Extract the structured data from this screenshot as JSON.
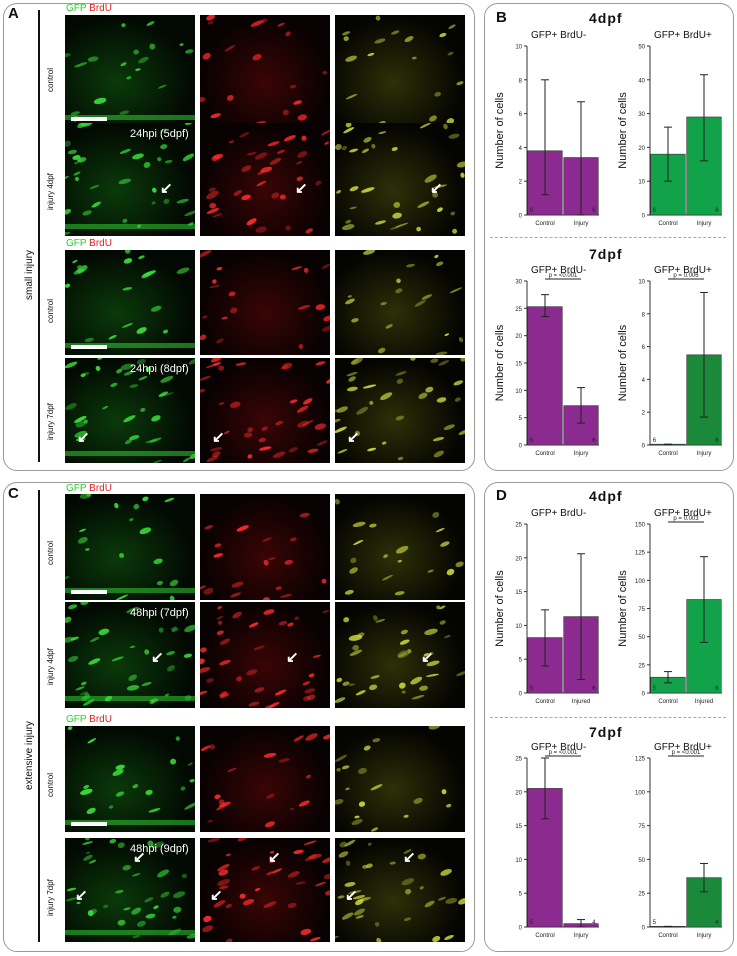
{
  "labels": {
    "a": "A",
    "b": "B",
    "c": "C",
    "d": "D"
  },
  "channels": {
    "gfp": "GFP",
    "brdu": "BrdU"
  },
  "groups": {
    "small": "small injury",
    "extensive": "extensive injury"
  },
  "rows": {
    "control": "control",
    "injury4": "injury 4dpf",
    "injury7": "injury 7dpf"
  },
  "captions": {
    "a2": "24hpi (5dpf)",
    "a4": "24hpi (8dpf)",
    "c2": "48hpi (7dpf)",
    "c4": "48hpi (9dpf)"
  },
  "headings": {
    "b4": "4dpf",
    "b7": "7dpf",
    "d4": "4dpf",
    "d7": "7dpf"
  },
  "colors": {
    "purple": "#8b2a8f",
    "green": "#12a24a",
    "greenDark": "#1a8a3a"
  },
  "chart_data": [
    {
      "id": "b4l",
      "type": "bar",
      "title": "GFP+ BrdU-",
      "ylabel": "Number of cells",
      "ylim": [
        0,
        10
      ],
      "yticks": [
        0,
        2,
        4,
        6,
        8,
        10
      ],
      "categories": [
        "Control",
        "Injury"
      ],
      "values": [
        3.8,
        3.4
      ],
      "errors": [
        [
          1.2,
          8.0
        ],
        [
          0,
          6.7
        ]
      ],
      "n": [
        "6",
        "6"
      ],
      "color": "purple",
      "pvalue": ""
    },
    {
      "id": "b4r",
      "type": "bar",
      "title": "GFP+ BrdU+",
      "ylabel": "Number of cells",
      "ylim": [
        0,
        50
      ],
      "yticks": [
        0,
        10,
        20,
        30,
        40,
        50
      ],
      "categories": [
        "Control",
        "Injury"
      ],
      "values": [
        18,
        29
      ],
      "errors": [
        [
          10,
          26
        ],
        [
          16,
          41.5
        ]
      ],
      "n": [
        "6",
        "6"
      ],
      "color": "green",
      "pvalue": ""
    },
    {
      "id": "b7l",
      "type": "bar",
      "title": "GFP+ BrdU-",
      "ylabel": "Number of cells",
      "ylim": [
        0,
        30
      ],
      "yticks": [
        0,
        5,
        10,
        15,
        20,
        25,
        30
      ],
      "categories": [
        "Control",
        "Injury"
      ],
      "values": [
        25.3,
        7.2
      ],
      "errors": [
        [
          23.5,
          27.5
        ],
        [
          4,
          10.5
        ]
      ],
      "n": [
        "6",
        "6"
      ],
      "color": "purple",
      "pvalue": "p = <0.001"
    },
    {
      "id": "b7r",
      "type": "bar",
      "title": "GFP+ BrdU+",
      "ylabel": "Number of cells",
      "ylim": [
        0,
        10
      ],
      "yticks": [
        0,
        2,
        4,
        6,
        8,
        10
      ],
      "categories": [
        "Control",
        "Injury"
      ],
      "values": [
        0.05,
        5.5
      ],
      "errors": [
        [
          0,
          0.05
        ],
        [
          1.7,
          9.3
        ]
      ],
      "n": [
        "6",
        "6"
      ],
      "color": "greenDark",
      "pvalue": "p = 0.006"
    },
    {
      "id": "d4l",
      "type": "bar",
      "title": "GFP+ BrdU-",
      "ylabel": "Number of cells",
      "ylim": [
        0,
        25
      ],
      "yticks": [
        0,
        5,
        10,
        15,
        20,
        25
      ],
      "categories": [
        "Control",
        "Injured"
      ],
      "values": [
        8.2,
        11.3
      ],
      "errors": [
        [
          4,
          12.3
        ],
        [
          2,
          20.6
        ]
      ],
      "n": [
        "5",
        "6"
      ],
      "color": "purple",
      "pvalue": ""
    },
    {
      "id": "d4r",
      "type": "bar",
      "title": "GFP+ BrdU+",
      "ylabel": "Number of cells",
      "ylim": [
        0,
        150
      ],
      "yticks": [
        0,
        25,
        50,
        75,
        100,
        125,
        150
      ],
      "categories": [
        "Control",
        "Injured"
      ],
      "values": [
        14,
        83
      ],
      "errors": [
        [
          9,
          19
        ],
        [
          45,
          121
        ]
      ],
      "n": [
        "5",
        "6"
      ],
      "color": "green",
      "pvalue": "p = 0.003"
    },
    {
      "id": "d7l",
      "type": "bar",
      "title": "GFP+ BrdU-",
      "ylabel": "",
      "ylim": [
        0,
        25
      ],
      "yticks": [
        0,
        5,
        10,
        15,
        20,
        25
      ],
      "categories": [
        "Control",
        "Injury"
      ],
      "values": [
        20.5,
        0.5
      ],
      "errors": [
        [
          16,
          25
        ],
        [
          0,
          1.1
        ]
      ],
      "n": [
        "5",
        "4"
      ],
      "color": "purple",
      "pvalue": "p = <0.001"
    },
    {
      "id": "d7r",
      "type": "bar",
      "title": "GFP+ BrdU+",
      "ylabel": "",
      "ylim": [
        0,
        125
      ],
      "yticks": [
        0,
        25,
        50,
        75,
        100,
        125
      ],
      "categories": [
        "Control",
        "Injury"
      ],
      "values": [
        0.5,
        36.5
      ],
      "errors": [
        [
          0,
          0.5
        ],
        [
          26,
          47
        ]
      ],
      "n": [
        "5",
        "4"
      ],
      "color": "greenDark",
      "pvalue": "p = <0.001"
    }
  ]
}
